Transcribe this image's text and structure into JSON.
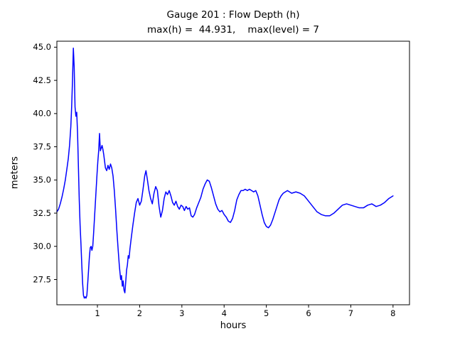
{
  "chart_data": {
    "type": "line",
    "title": "Gauge 201 : Flow Depth (h)",
    "subtitle": "max(h) =  44.931,    max(level) = 7",
    "xlabel": "hours",
    "ylabel": "meters",
    "max_h": 44.931,
    "max_level": 7,
    "line_color": "#0000ff",
    "axis_color": "#000000",
    "grid": false,
    "legend_position": "none",
    "xlim": [
      0.04,
      8.39
    ],
    "ylim": [
      25.6,
      45.45
    ],
    "x_ticks": [
      1,
      2,
      3,
      4,
      5,
      6,
      7,
      8
    ],
    "x_tick_labels": [
      "1",
      "2",
      "3",
      "4",
      "5",
      "6",
      "7",
      "8"
    ],
    "y_ticks": [
      27.5,
      30.0,
      32.5,
      35.0,
      37.5,
      40.0,
      42.5,
      45.0
    ],
    "y_tick_labels": [
      "27.5",
      "30.0",
      "32.5",
      "35.0",
      "37.5",
      "40.0",
      "42.5",
      "45.0"
    ],
    "series": [
      {
        "name": "flow-depth-h",
        "points": [
          [
            0.04,
            32.6
          ],
          [
            0.08,
            32.8
          ],
          [
            0.12,
            33.2
          ],
          [
            0.16,
            33.7
          ],
          [
            0.2,
            34.3
          ],
          [
            0.24,
            35.0
          ],
          [
            0.28,
            35.9
          ],
          [
            0.31,
            36.6
          ],
          [
            0.34,
            37.6
          ],
          [
            0.37,
            39.0
          ],
          [
            0.39,
            40.5
          ],
          [
            0.41,
            42.5
          ],
          [
            0.43,
            44.93
          ],
          [
            0.45,
            43.5
          ],
          [
            0.47,
            40.5
          ],
          [
            0.49,
            39.8
          ],
          [
            0.51,
            40.1
          ],
          [
            0.53,
            38.5
          ],
          [
            0.55,
            36.0
          ],
          [
            0.57,
            33.5
          ],
          [
            0.59,
            31.6
          ],
          [
            0.61,
            30.2
          ],
          [
            0.63,
            28.6
          ],
          [
            0.65,
            27.2
          ],
          [
            0.67,
            26.3
          ],
          [
            0.69,
            26.1
          ],
          [
            0.71,
            26.2
          ],
          [
            0.73,
            26.1
          ],
          [
            0.75,
            26.3
          ],
          [
            0.77,
            27.2
          ],
          [
            0.79,
            28.2
          ],
          [
            0.81,
            29.2
          ],
          [
            0.83,
            29.9
          ],
          [
            0.85,
            30.0
          ],
          [
            0.87,
            29.7
          ],
          [
            0.89,
            30.0
          ],
          [
            0.91,
            31.0
          ],
          [
            0.93,
            32.1
          ],
          [
            0.95,
            33.2
          ],
          [
            0.97,
            34.3
          ],
          [
            0.99,
            35.4
          ],
          [
            1.01,
            36.4
          ],
          [
            1.03,
            37.2
          ],
          [
            1.05,
            38.5
          ],
          [
            1.07,
            37.2
          ],
          [
            1.09,
            37.4
          ],
          [
            1.11,
            37.6
          ],
          [
            1.13,
            37.3
          ],
          [
            1.15,
            36.9
          ],
          [
            1.17,
            36.4
          ],
          [
            1.19,
            35.9
          ],
          [
            1.22,
            35.7
          ],
          [
            1.25,
            36.1
          ],
          [
            1.28,
            35.8
          ],
          [
            1.31,
            36.2
          ],
          [
            1.34,
            35.9
          ],
          [
            1.37,
            35.3
          ],
          [
            1.4,
            34.2
          ],
          [
            1.43,
            32.8
          ],
          [
            1.46,
            31.2
          ],
          [
            1.49,
            29.8
          ],
          [
            1.52,
            28.5
          ],
          [
            1.55,
            27.5
          ],
          [
            1.57,
            27.8
          ],
          [
            1.59,
            27.0
          ],
          [
            1.61,
            27.4
          ],
          [
            1.63,
            26.7
          ],
          [
            1.65,
            26.5
          ],
          [
            1.67,
            27.3
          ],
          [
            1.69,
            28.2
          ],
          [
            1.71,
            28.6
          ],
          [
            1.73,
            29.3
          ],
          [
            1.75,
            29.1
          ],
          [
            1.77,
            29.8
          ],
          [
            1.8,
            30.6
          ],
          [
            1.84,
            31.6
          ],
          [
            1.88,
            32.5
          ],
          [
            1.92,
            33.3
          ],
          [
            1.96,
            33.6
          ],
          [
            2.0,
            33.1
          ],
          [
            2.04,
            33.4
          ],
          [
            2.08,
            34.3
          ],
          [
            2.12,
            35.3
          ],
          [
            2.15,
            35.7
          ],
          [
            2.18,
            35.1
          ],
          [
            2.22,
            34.2
          ],
          [
            2.26,
            33.6
          ],
          [
            2.3,
            33.2
          ],
          [
            2.34,
            34.0
          ],
          [
            2.38,
            34.5
          ],
          [
            2.42,
            34.2
          ],
          [
            2.46,
            33.0
          ],
          [
            2.5,
            32.2
          ],
          [
            2.54,
            32.7
          ],
          [
            2.58,
            33.6
          ],
          [
            2.62,
            34.1
          ],
          [
            2.66,
            33.9
          ],
          [
            2.7,
            34.2
          ],
          [
            2.74,
            33.8
          ],
          [
            2.78,
            33.3
          ],
          [
            2.82,
            33.1
          ],
          [
            2.86,
            33.4
          ],
          [
            2.9,
            33.0
          ],
          [
            2.94,
            32.8
          ],
          [
            2.98,
            33.1
          ],
          [
            3.02,
            33.0
          ],
          [
            3.06,
            32.7
          ],
          [
            3.1,
            33.0
          ],
          [
            3.14,
            32.8
          ],
          [
            3.18,
            32.9
          ],
          [
            3.22,
            32.3
          ],
          [
            3.26,
            32.2
          ],
          [
            3.3,
            32.4
          ],
          [
            3.35,
            32.9
          ],
          [
            3.4,
            33.3
          ],
          [
            3.45,
            33.7
          ],
          [
            3.5,
            34.3
          ],
          [
            3.55,
            34.7
          ],
          [
            3.6,
            35.0
          ],
          [
            3.65,
            34.9
          ],
          [
            3.7,
            34.4
          ],
          [
            3.75,
            33.8
          ],
          [
            3.8,
            33.2
          ],
          [
            3.85,
            32.8
          ],
          [
            3.9,
            32.6
          ],
          [
            3.95,
            32.7
          ],
          [
            4.0,
            32.4
          ],
          [
            4.05,
            32.2
          ],
          [
            4.1,
            31.9
          ],
          [
            4.15,
            31.8
          ],
          [
            4.2,
            32.1
          ],
          [
            4.25,
            32.7
          ],
          [
            4.3,
            33.5
          ],
          [
            4.35,
            33.9
          ],
          [
            4.4,
            34.2
          ],
          [
            4.45,
            34.2
          ],
          [
            4.5,
            34.3
          ],
          [
            4.55,
            34.2
          ],
          [
            4.6,
            34.3
          ],
          [
            4.65,
            34.2
          ],
          [
            4.7,
            34.1
          ],
          [
            4.75,
            34.2
          ],
          [
            4.8,
            33.8
          ],
          [
            4.85,
            33.1
          ],
          [
            4.9,
            32.4
          ],
          [
            4.95,
            31.8
          ],
          [
            5.0,
            31.5
          ],
          [
            5.05,
            31.4
          ],
          [
            5.1,
            31.6
          ],
          [
            5.15,
            32.0
          ],
          [
            5.2,
            32.5
          ],
          [
            5.25,
            33.0
          ],
          [
            5.3,
            33.5
          ],
          [
            5.35,
            33.8
          ],
          [
            5.4,
            34.0
          ],
          [
            5.45,
            34.1
          ],
          [
            5.5,
            34.2
          ],
          [
            5.55,
            34.1
          ],
          [
            5.6,
            34.0
          ],
          [
            5.7,
            34.1
          ],
          [
            5.8,
            34.0
          ],
          [
            5.9,
            33.8
          ],
          [
            6.0,
            33.4
          ],
          [
            6.1,
            33.0
          ],
          [
            6.2,
            32.6
          ],
          [
            6.3,
            32.4
          ],
          [
            6.4,
            32.3
          ],
          [
            6.5,
            32.3
          ],
          [
            6.6,
            32.5
          ],
          [
            6.7,
            32.8
          ],
          [
            6.8,
            33.1
          ],
          [
            6.9,
            33.2
          ],
          [
            7.0,
            33.1
          ],
          [
            7.1,
            33.0
          ],
          [
            7.2,
            32.9
          ],
          [
            7.3,
            32.9
          ],
          [
            7.4,
            33.1
          ],
          [
            7.5,
            33.2
          ],
          [
            7.6,
            33.0
          ],
          [
            7.7,
            33.1
          ],
          [
            7.8,
            33.3
          ],
          [
            7.9,
            33.6
          ],
          [
            8.0,
            33.8
          ]
        ]
      }
    ]
  }
}
